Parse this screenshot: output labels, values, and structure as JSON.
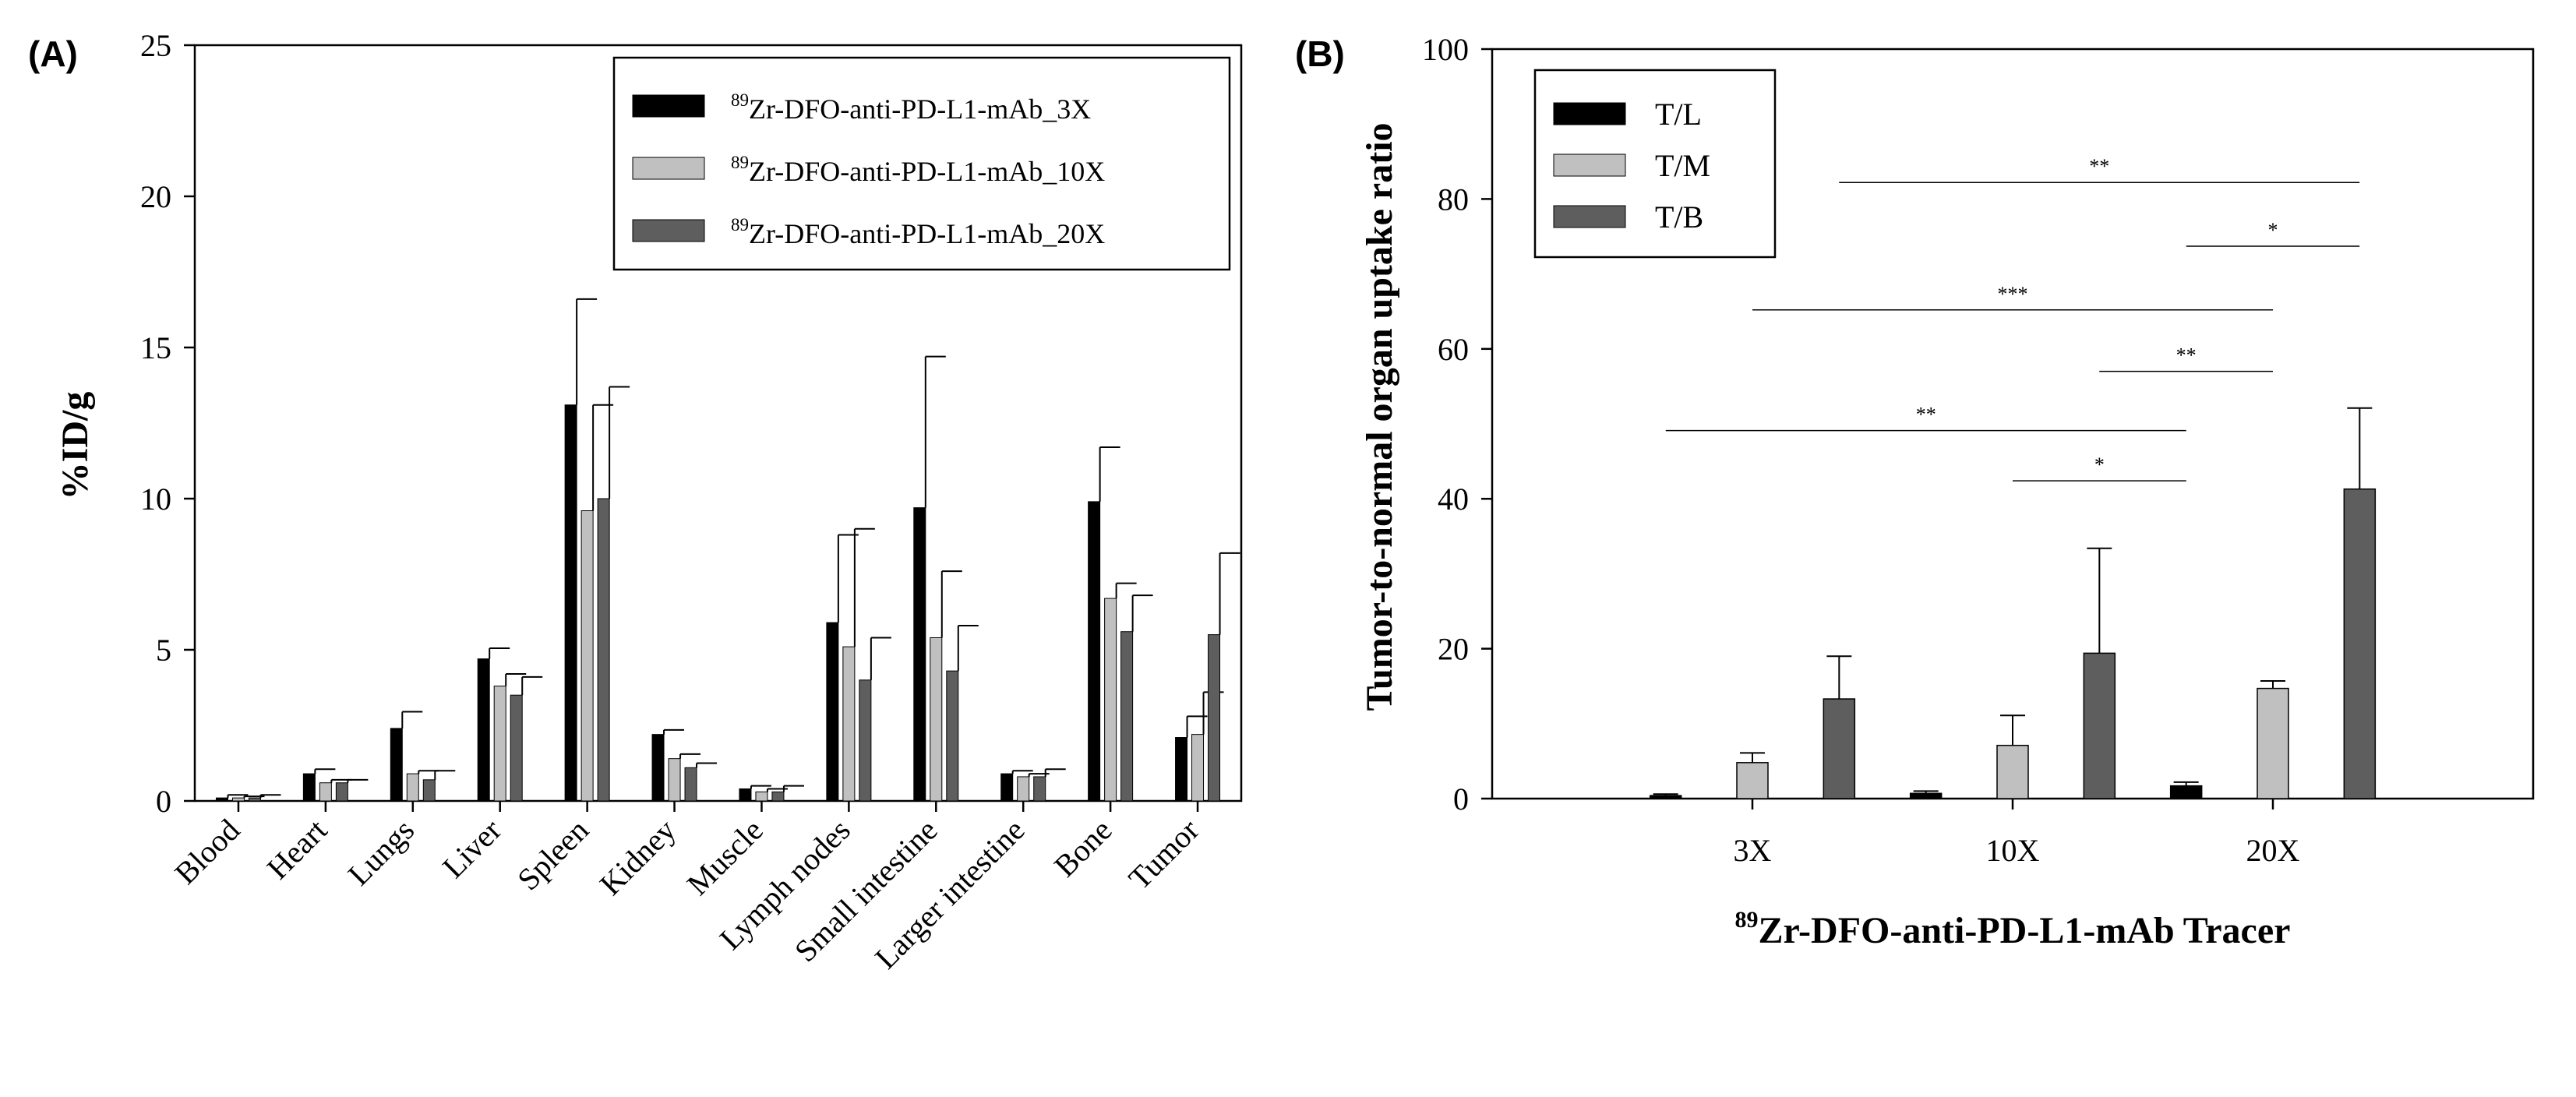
{
  "chart_data": [
    {
      "panel": "(A)",
      "type": "bar",
      "ylabel": "%ID/g",
      "xlabel": "",
      "ylim": [
        0,
        25
      ],
      "yticks": [
        "0",
        "5",
        "10",
        "15",
        "20",
        "25"
      ],
      "categories": [
        "Blood",
        "Heart",
        "Lungs",
        "Liver",
        "Spleen",
        "Kidney",
        "Muscle",
        "Lymph nodes",
        "Small intestine",
        "Larger intestine",
        "Bone",
        "Tumor"
      ],
      "legend_position": "top-right",
      "series": [
        {
          "name_sup": "89",
          "name": "Zr-DFO-anti-PD-L1-mAb_3X",
          "color": "#000000",
          "values": [
            0.1,
            0.9,
            2.4,
            4.7,
            13.1,
            2.2,
            0.4,
            5.9,
            9.7,
            0.9,
            9.9,
            2.1
          ],
          "errors": [
            0.1,
            0.15,
            0.55,
            0.35,
            3.5,
            0.15,
            0.1,
            2.9,
            5.0,
            0.1,
            1.8,
            0.7
          ]
        },
        {
          "name_sup": "89",
          "name": "Zr-DFO-anti-PD-L1-mAb_10X",
          "color": "#c0c0c0",
          "values": [
            0.1,
            0.6,
            0.9,
            3.8,
            9.6,
            1.4,
            0.3,
            5.1,
            5.4,
            0.8,
            6.7,
            2.2
          ],
          "errors": [
            0.05,
            0.1,
            0.1,
            0.4,
            3.5,
            0.15,
            0.1,
            3.9,
            2.2,
            0.1,
            0.5,
            1.4
          ]
        },
        {
          "name_sup": "89",
          "name": "Zr-DFO-anti-PD-L1-mAb_20X",
          "color": "#5e5e5e",
          "values": [
            0.1,
            0.6,
            0.7,
            3.5,
            10.0,
            1.1,
            0.3,
            4.0,
            4.3,
            0.8,
            5.6,
            5.5
          ],
          "errors": [
            0.1,
            0.1,
            0.3,
            0.6,
            3.7,
            0.15,
            0.2,
            1.4,
            1.5,
            0.25,
            1.2,
            2.7
          ]
        }
      ]
    },
    {
      "panel": "(B)",
      "type": "bar",
      "ylabel": "Tumor-to-normal organ uptake ratio",
      "xlabel_sup": "89",
      "xlabel": "Zr-DFO-anti-PD-L1-mAb Tracer",
      "ylim": [
        0,
        100
      ],
      "xlim": [
        0,
        4
      ],
      "yticks": [
        "0",
        "20",
        "40",
        "60",
        "80",
        "100"
      ],
      "categories": [
        "3X",
        "10X",
        "20X"
      ],
      "legend_position": "top-left",
      "series": [
        {
          "name": "T/L",
          "color": "#000000",
          "values": [
            0.4,
            0.7,
            1.7
          ],
          "errors": [
            0.2,
            0.3,
            0.5
          ]
        },
        {
          "name": "T/M",
          "color": "#c0c0c0",
          "values": [
            4.8,
            7.1,
            14.7
          ],
          "errors": [
            1.3,
            4.0,
            1.0
          ]
        },
        {
          "name": "T/B",
          "color": "#5e5e5e",
          "values": [
            13.3,
            19.4,
            41.3
          ],
          "errors": [
            5.7,
            14.0,
            10.8
          ]
        }
      ],
      "significance": [
        {
          "label": "**",
          "x1": 1.333,
          "x2": 3.333,
          "y": 82.2
        },
        {
          "label": "*",
          "x1": 2.667,
          "x2": 3.333,
          "y": 73.7
        },
        {
          "label": "***",
          "x1": 1.0,
          "x2": 3.0,
          "y": 65.2
        },
        {
          "label": "**",
          "x1": 2.333,
          "x2": 3.0,
          "y": 57.0
        },
        {
          "label": "**",
          "x1": 0.667,
          "x2": 2.667,
          "y": 49.1
        },
        {
          "label": "*",
          "x1": 2.0,
          "x2": 2.667,
          "y": 42.4
        }
      ]
    }
  ]
}
